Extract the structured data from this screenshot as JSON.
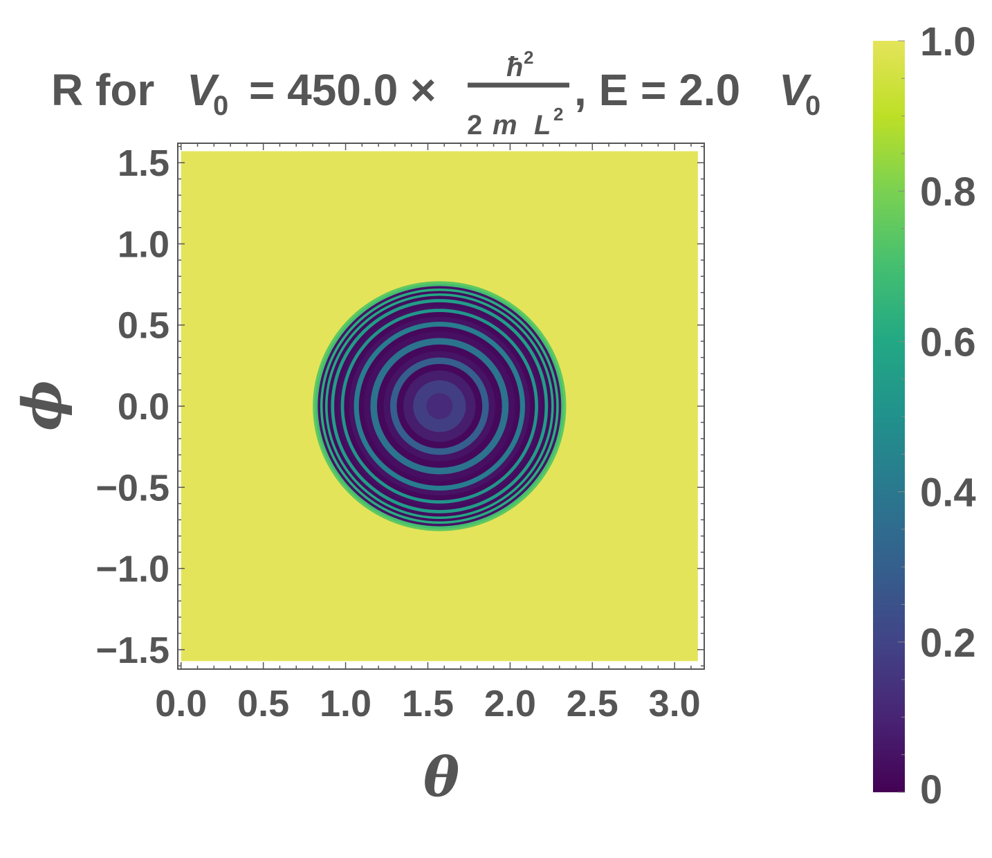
{
  "chart_data": {
    "type": "heatmap",
    "title": {
      "prefix": "R for",
      "v_symbol": "V",
      "v_subscript": "0",
      "equals_value": "= 450.0 ×",
      "fraction_numerator_base": "ħ",
      "fraction_numerator_exp": "2",
      "fraction_denominator_coef": "2",
      "fraction_denominator_m": "m",
      "fraction_denominator_L": "L",
      "fraction_denominator_exp": "2",
      "energy_part": ", E = 2.0",
      "energy_unit_symbol": "V",
      "energy_unit_subscript": "0"
    },
    "xlabel": "θ",
    "ylabel": "ϕ",
    "xlim": [
      -0.02,
      3.18
    ],
    "ylim": [
      -1.62,
      1.62
    ],
    "xticks": [
      0.0,
      0.5,
      1.0,
      1.5,
      2.0,
      2.5,
      3.0
    ],
    "xtick_labels": [
      "0.0",
      "0.5",
      "1.0",
      "1.5",
      "2.0",
      "2.5",
      "3.0"
    ],
    "yticks": [
      1.5,
      1.0,
      0.5,
      0.0,
      -0.5,
      -1.0,
      -1.5
    ],
    "ytick_labels": [
      "1.5",
      "1.0",
      "0.5",
      "0.0",
      "−0.5",
      "−1.0",
      "−1.5"
    ],
    "data_extent": {
      "x": [
        0.0,
        3.1416
      ],
      "y": [
        -1.5708,
        1.5708
      ]
    },
    "background_value": 1.0,
    "disk": {
      "center": [
        1.5708,
        0.0
      ],
      "radius": 0.77
    },
    "profile": {
      "description_free_samples": true,
      "r": [
        0.0,
        0.08,
        0.16,
        0.22,
        0.26,
        0.3,
        0.34,
        0.38,
        0.42,
        0.46,
        0.49,
        0.52,
        0.55,
        0.58,
        0.6,
        0.62,
        0.64,
        0.66,
        0.68,
        0.695,
        0.71,
        0.725,
        0.74,
        0.755,
        0.77
      ],
      "R": [
        0.1,
        0.12,
        0.18,
        0.08,
        0.02,
        0.3,
        0.05,
        0.02,
        0.38,
        0.04,
        0.02,
        0.42,
        0.05,
        0.02,
        0.52,
        0.04,
        0.03,
        0.55,
        0.03,
        0.6,
        0.03,
        0.62,
        0.05,
        0.7,
        0.75
      ]
    },
    "colorbar": {
      "range": [
        0,
        1
      ],
      "ticks": [
        0,
        0.2,
        0.4,
        0.6,
        0.8,
        1.0
      ],
      "tick_labels": [
        "0",
        "0.2",
        "0.4",
        "0.6",
        "0.8",
        "1.0"
      ],
      "colormap": "viridis"
    },
    "colors": {
      "text": "#555555",
      "frame": "#555555",
      "viridis_low": "#440154",
      "viridis_high": "#fde725"
    }
  }
}
